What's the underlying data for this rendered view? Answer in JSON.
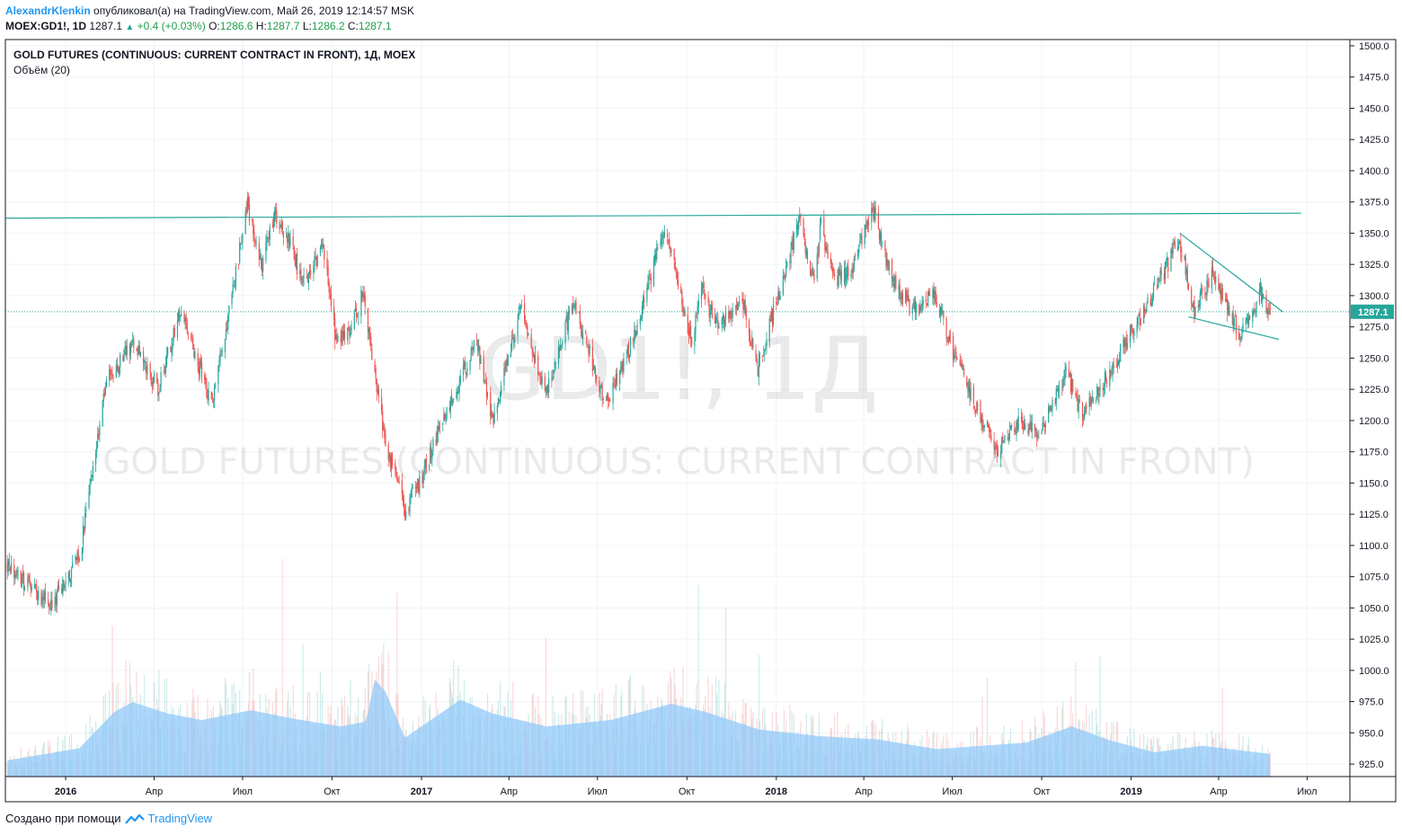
{
  "header": {
    "author": "AlexandrKlenkin",
    "published": "опубликовал(а) на TradingView.com, Май 26, 2019 12:14:57 MSK",
    "symbol": "MOEX:GD1!, 1D",
    "last": "1287.1",
    "change": "+0.4 (+0.03%)",
    "open_label": "O:",
    "open": "1286.6",
    "high_label": "H:",
    "high": "1287.7",
    "low_label": "L:",
    "low": "1286.2",
    "close_label": "C:",
    "close": "1287.1"
  },
  "legend": {
    "title": "GOLD FUTURES (CONTINUOUS: CURRENT CONTRACT IN FRONT), 1Д, MOEX",
    "volume": "Объём (20)"
  },
  "watermark": {
    "line1": "GD1!, 1Д",
    "line2": "GOLD FUTURES (CONTINUOUS: CURRENT CONTRACT IN FRONT)"
  },
  "price_label": "1287.1",
  "footer": {
    "created_with": "Создано при помощи",
    "brand": "TradingView"
  },
  "colors": {
    "up": "#26a69a",
    "down": "#ef5350",
    "trendline": "#26a69a",
    "price_tag": "#26a69a",
    "volume_ma": "#90caf9",
    "grid": "#f0f3fa",
    "axis": "#131722"
  },
  "chart_data": {
    "type": "candlestick",
    "ylim": [
      915,
      1505
    ],
    "y_ticks": [
      925,
      950,
      975,
      1000,
      1025,
      1050,
      1075,
      1100,
      1125,
      1150,
      1175,
      1200,
      1225,
      1250,
      1275,
      1300,
      1325,
      1350,
      1375,
      1400,
      1425,
      1450,
      1475,
      1500
    ],
    "x_range": [
      "2015-10-31",
      "2019-08-14"
    ],
    "x_ticks": [
      {
        "label": "2016",
        "date": "2016-01-01",
        "bold": true
      },
      {
        "label": "Апр",
        "date": "2016-04-01"
      },
      {
        "label": "Июл",
        "date": "2016-07-01"
      },
      {
        "label": "Окт",
        "date": "2016-10-01"
      },
      {
        "label": "2017",
        "date": "2017-01-01",
        "bold": true
      },
      {
        "label": "Апр",
        "date": "2017-04-01"
      },
      {
        "label": "Июл",
        "date": "2017-07-01"
      },
      {
        "label": "Окт",
        "date": "2017-10-01"
      },
      {
        "label": "2018",
        "date": "2018-01-01",
        "bold": true
      },
      {
        "label": "Апр",
        "date": "2018-04-01"
      },
      {
        "label": "Июл",
        "date": "2018-07-01"
      },
      {
        "label": "Окт",
        "date": "2018-10-01"
      },
      {
        "label": "2019",
        "date": "2019-01-01",
        "bold": true
      },
      {
        "label": "Апр",
        "date": "2019-04-01"
      },
      {
        "label": "Июл",
        "date": "2019-07-01"
      }
    ],
    "price_path": [
      [
        "2015-11-02",
        1085
      ],
      [
        "2015-12-01",
        1062
      ],
      [
        "2015-12-17",
        1052
      ],
      [
        "2016-01-15",
        1090
      ],
      [
        "2016-02-11",
        1230
      ],
      [
        "2016-03-10",
        1262
      ],
      [
        "2016-04-05",
        1225
      ],
      [
        "2016-04-28",
        1290
      ],
      [
        "2016-05-30",
        1212
      ],
      [
        "2016-06-24",
        1318
      ],
      [
        "2016-07-06",
        1372
      ],
      [
        "2016-07-20",
        1322
      ],
      [
        "2016-08-02",
        1365
      ],
      [
        "2016-08-19",
        1342
      ],
      [
        "2016-09-01",
        1308
      ],
      [
        "2016-09-22",
        1342
      ],
      [
        "2016-10-05",
        1262
      ],
      [
        "2016-10-20",
        1272
      ],
      [
        "2016-11-03",
        1305
      ],
      [
        "2016-11-10",
        1255
      ],
      [
        "2016-11-25",
        1182
      ],
      [
        "2016-12-15",
        1130
      ],
      [
        "2016-12-30",
        1150
      ],
      [
        "2017-01-25",
        1205
      ],
      [
        "2017-02-27",
        1262
      ],
      [
        "2017-03-15",
        1198
      ],
      [
        "2017-04-13",
        1290
      ],
      [
        "2017-05-09",
        1222
      ],
      [
        "2017-06-06",
        1295
      ],
      [
        "2017-07-10",
        1212
      ],
      [
        "2017-08-07",
        1265
      ],
      [
        "2017-09-08",
        1355
      ],
      [
        "2017-10-06",
        1262
      ],
      [
        "2017-10-16",
        1305
      ],
      [
        "2017-11-01",
        1275
      ],
      [
        "2017-11-27",
        1298
      ],
      [
        "2017-12-12",
        1240
      ],
      [
        "2018-01-25",
        1360
      ],
      [
        "2018-02-08",
        1312
      ],
      [
        "2018-02-16",
        1355
      ],
      [
        "2018-03-01",
        1312
      ],
      [
        "2018-03-16",
        1318
      ],
      [
        "2018-04-11",
        1368
      ],
      [
        "2018-04-30",
        1312
      ],
      [
        "2018-05-21",
        1288
      ],
      [
        "2018-06-14",
        1300
      ],
      [
        "2018-07-02",
        1252
      ],
      [
        "2018-08-16",
        1175
      ],
      [
        "2018-09-10",
        1200
      ],
      [
        "2018-09-28",
        1188
      ],
      [
        "2018-10-26",
        1238
      ],
      [
        "2018-11-13",
        1203
      ],
      [
        "2018-12-10",
        1240
      ],
      [
        "2019-01-25",
        1303
      ],
      [
        "2019-02-20",
        1345
      ],
      [
        "2019-03-07",
        1285
      ],
      [
        "2019-03-25",
        1318
      ],
      [
        "2019-04-23",
        1268
      ],
      [
        "2019-05-14",
        1302
      ],
      [
        "2019-05-24",
        1287.1
      ]
    ],
    "volume_ma_path": [
      [
        "2015-11-02",
        20
      ],
      [
        "2016-01-15",
        35
      ],
      [
        "2016-02-20",
        80
      ],
      [
        "2016-03-10",
        92
      ],
      [
        "2016-04-15",
        78
      ],
      [
        "2016-05-20",
        70
      ],
      [
        "2016-07-10",
        82
      ],
      [
        "2016-08-20",
        72
      ],
      [
        "2016-10-10",
        62
      ],
      [
        "2016-11-05",
        68
      ],
      [
        "2016-11-14",
        120
      ],
      [
        "2016-11-25",
        105
      ],
      [
        "2016-12-15",
        48
      ],
      [
        "2017-02-10",
        95
      ],
      [
        "2017-03-15",
        78
      ],
      [
        "2017-05-10",
        62
      ],
      [
        "2017-07-15",
        70
      ],
      [
        "2017-09-15",
        90
      ],
      [
        "2017-10-20",
        80
      ],
      [
        "2017-12-15",
        58
      ],
      [
        "2018-02-15",
        50
      ],
      [
        "2018-04-15",
        46
      ],
      [
        "2018-06-15",
        34
      ],
      [
        "2018-09-15",
        42
      ],
      [
        "2018-11-01",
        62
      ],
      [
        "2018-12-10",
        45
      ],
      [
        "2019-01-25",
        30
      ],
      [
        "2019-03-15",
        38
      ],
      [
        "2019-05-24",
        28
      ]
    ],
    "trendlines": [
      {
        "name": "resistance",
        "from": [
          "2015-10-31",
          1362
        ],
        "to": [
          "2019-06-25",
          1366
        ]
      },
      {
        "name": "wedge-upper",
        "from": [
          "2019-02-20",
          1350
        ],
        "to": [
          "2019-06-06",
          1287
        ]
      },
      {
        "name": "wedge-lower",
        "from": [
          "2019-03-01",
          1283
        ],
        "to": [
          "2019-06-02",
          1265
        ]
      }
    ]
  }
}
